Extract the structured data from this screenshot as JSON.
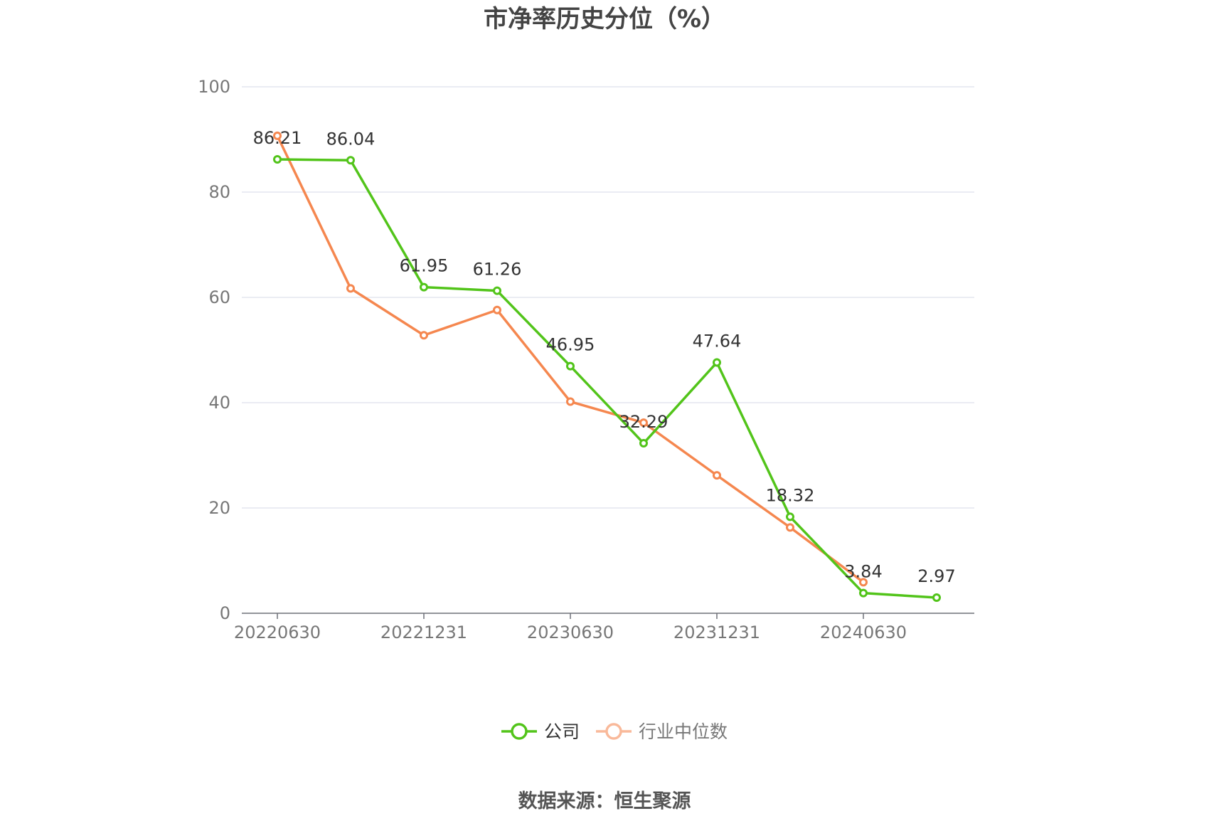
{
  "chart_data": {
    "type": "line",
    "title": "市净率历史分位（%）",
    "categories": [
      "20220630",
      "",
      "20221231",
      "",
      "20230630",
      "",
      "20231231",
      "",
      "20240630",
      ""
    ],
    "x_tick_labels": [
      "20220630",
      "20221231",
      "20230630",
      "20231231",
      "20240630"
    ],
    "ylim": [
      0,
      100
    ],
    "y_ticks": [
      0,
      20,
      40,
      60,
      80,
      100
    ],
    "grid": true,
    "legend_position": "bottom-center",
    "series": [
      {
        "name": "公司",
        "color": "#52c41a",
        "values": [
          86.21,
          86.04,
          61.95,
          61.26,
          46.95,
          32.29,
          47.64,
          18.32,
          3.84,
          2.97
        ],
        "labels": [
          "86.21",
          "86.04",
          "61.95",
          "61.26",
          "46.95",
          "32.29",
          "47.64",
          "18.32",
          "3.84",
          "2.97"
        ]
      },
      {
        "name": "行业中位数",
        "color": "#f5874f",
        "values": [
          90.7,
          61.7,
          52.8,
          57.6,
          40.2,
          36.2,
          26.2,
          16.3,
          5.9,
          null
        ]
      }
    ]
  },
  "footer": {
    "source": "数据来源：恒生聚源"
  }
}
